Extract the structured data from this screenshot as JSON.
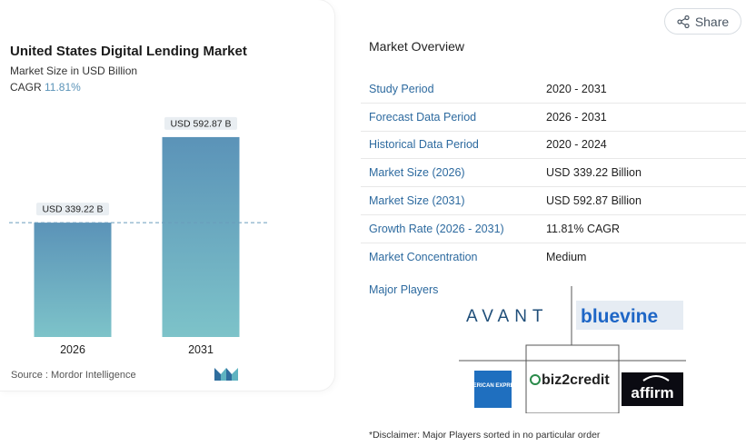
{
  "chart": {
    "title": "United States Digital Lending Market",
    "subtitle": "Market Size in USD Billion",
    "cagr_label": "CAGR",
    "cagr_value": "11.81%",
    "source": "Source :  Mordor Intelligence",
    "colors": {
      "bar_top": "#5b93b8",
      "bar_bottom": "#7dc3c9",
      "label_bg": "#e9eef2",
      "dash": "#6a9cbc"
    }
  },
  "chart_data": {
    "type": "bar",
    "categories": [
      "2026",
      "2031"
    ],
    "values": [
      339.22,
      592.87
    ],
    "data_labels": [
      "USD 339.22 B",
      "USD 592.87 B"
    ],
    "title": "United States Digital Lending Market",
    "ylabel": "Market Size in USD Billion",
    "ylim": [
      0,
      660
    ],
    "grid": false,
    "reference_line": 339.22
  },
  "share": {
    "label": "Share"
  },
  "overview": {
    "title": "Market Overview",
    "rows": [
      {
        "key": "Study Period",
        "value": "2020 - 2031"
      },
      {
        "key": "Forecast Data Period",
        "value": "2026 - 2031"
      },
      {
        "key": "Historical Data Period",
        "value": "2020 - 2024"
      },
      {
        "key": "Market Size (2026)",
        "value": "USD 339.22 Billion"
      },
      {
        "key": "Market Size (2031)",
        "value": "USD 592.87 Billion"
      },
      {
        "key": "Growth Rate (2026 - 2031)",
        "value": "11.81% CAGR"
      },
      {
        "key": "Market Concentration",
        "value": "Medium"
      }
    ]
  },
  "players": {
    "title": "Major Players",
    "logos": [
      "AVANT",
      "bluevine",
      "AMERICAN EXPRESS",
      "biz2credit",
      "affirm"
    ],
    "disclaimer": "*Disclaimer: Major Players sorted in no particular order"
  }
}
